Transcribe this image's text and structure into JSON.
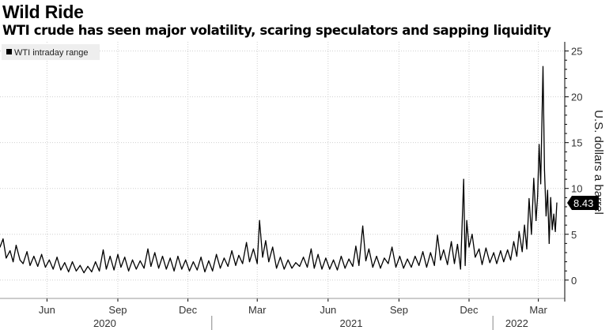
{
  "title": "Wild Ride",
  "subtitle": "WTI crude has seen major volatility, scaring speculators and sapping liquidity",
  "colors": {
    "line": "#000000",
    "grid": "#cfcfcf",
    "legend_bg": "#eeeeee",
    "last_bg": "#000000"
  },
  "chart_data": {
    "type": "line",
    "title": "Wild Ride",
    "subtitle": "WTI crude has seen major volatility, scaring speculators and sapping liquidity",
    "ylabel": "U.S. dollars a barrel",
    "xlabel": "",
    "ylim": [
      -2,
      26
    ],
    "yticks": [
      0,
      5,
      10,
      15,
      20,
      25
    ],
    "y_axis_side": "right",
    "grid": true,
    "legend": {
      "placement": "top-left",
      "entries": [
        "WTI intraday range"
      ]
    },
    "last_value_label": "8.43",
    "x_range": [
      "2020-04-01",
      "2022-03-25"
    ],
    "month_ticks": [
      {
        "date": "2020-06-01",
        "label": "Jun"
      },
      {
        "date": "2020-09-01",
        "label": "Sep"
      },
      {
        "date": "2020-12-01",
        "label": "Dec"
      },
      {
        "date": "2021-03-01",
        "label": "Mar"
      },
      {
        "date": "2021-06-01",
        "label": "Jun"
      },
      {
        "date": "2021-09-01",
        "label": "Sep"
      },
      {
        "date": "2021-12-01",
        "label": "Dec"
      },
      {
        "date": "2022-03-01",
        "label": "Mar"
      }
    ],
    "year_ticks": [
      {
        "date": "2020-08-15",
        "label": "2020"
      },
      {
        "date": "2021-07-01",
        "label": "2021"
      },
      {
        "date": "2022-02-01",
        "label": "2022"
      }
    ],
    "series": [
      {
        "name": "WTI intraday range",
        "points": [
          [
            "2020-04-01",
            3.6
          ],
          [
            "2020-04-05",
            4.5
          ],
          [
            "2020-04-09",
            2.4
          ],
          [
            "2020-04-14",
            3.2
          ],
          [
            "2020-04-18",
            2.0
          ],
          [
            "2020-04-22",
            3.8
          ],
          [
            "2020-04-27",
            2.2
          ],
          [
            "2020-05-01",
            1.8
          ],
          [
            "2020-05-06",
            3.1
          ],
          [
            "2020-05-10",
            1.6
          ],
          [
            "2020-05-15",
            2.6
          ],
          [
            "2020-05-20",
            1.5
          ],
          [
            "2020-05-25",
            2.8
          ],
          [
            "2020-05-30",
            1.4
          ],
          [
            "2020-06-04",
            2.2
          ],
          [
            "2020-06-09",
            1.2
          ],
          [
            "2020-06-14",
            2.5
          ],
          [
            "2020-06-19",
            1.1
          ],
          [
            "2020-06-24",
            1.9
          ],
          [
            "2020-06-29",
            0.9
          ],
          [
            "2020-07-04",
            2.0
          ],
          [
            "2020-07-09",
            1.0
          ],
          [
            "2020-07-14",
            1.6
          ],
          [
            "2020-07-19",
            0.8
          ],
          [
            "2020-07-24",
            1.5
          ],
          [
            "2020-07-29",
            0.9
          ],
          [
            "2020-08-03",
            2.0
          ],
          [
            "2020-08-08",
            1.0
          ],
          [
            "2020-08-13",
            3.3
          ],
          [
            "2020-08-17",
            1.2
          ],
          [
            "2020-08-22",
            2.6
          ],
          [
            "2020-08-27",
            1.1
          ],
          [
            "2020-09-01",
            2.8
          ],
          [
            "2020-09-05",
            1.4
          ],
          [
            "2020-09-10",
            2.5
          ],
          [
            "2020-09-15",
            1.0
          ],
          [
            "2020-09-20",
            2.2
          ],
          [
            "2020-09-25",
            1.2
          ],
          [
            "2020-09-30",
            2.1
          ],
          [
            "2020-10-05",
            1.3
          ],
          [
            "2020-10-10",
            3.4
          ],
          [
            "2020-10-14",
            1.5
          ],
          [
            "2020-10-19",
            3.0
          ],
          [
            "2020-10-24",
            1.3
          ],
          [
            "2020-10-29",
            2.6
          ],
          [
            "2020-11-03",
            1.2
          ],
          [
            "2020-11-08",
            2.4
          ],
          [
            "2020-11-13",
            1.0
          ],
          [
            "2020-11-18",
            2.6
          ],
          [
            "2020-11-23",
            1.2
          ],
          [
            "2020-11-28",
            2.2
          ],
          [
            "2020-12-03",
            1.0
          ],
          [
            "2020-12-08",
            2.0
          ],
          [
            "2020-12-13",
            1.1
          ],
          [
            "2020-12-18",
            2.5
          ],
          [
            "2020-12-23",
            0.9
          ],
          [
            "2020-12-28",
            2.1
          ],
          [
            "2021-01-02",
            1.0
          ],
          [
            "2021-01-07",
            2.8
          ],
          [
            "2021-01-12",
            1.3
          ],
          [
            "2021-01-17",
            2.4
          ],
          [
            "2021-01-22",
            1.5
          ],
          [
            "2021-01-27",
            3.2
          ],
          [
            "2021-02-01",
            1.6
          ],
          [
            "2021-02-05",
            2.7
          ],
          [
            "2021-02-10",
            1.8
          ],
          [
            "2021-02-15",
            4.1
          ],
          [
            "2021-02-19",
            2.0
          ],
          [
            "2021-02-24",
            3.4
          ],
          [
            "2021-03-01",
            1.8
          ],
          [
            "2021-03-04",
            6.5
          ],
          [
            "2021-03-08",
            2.5
          ],
          [
            "2021-03-12",
            4.3
          ],
          [
            "2021-03-16",
            2.0
          ],
          [
            "2021-03-21",
            3.6
          ],
          [
            "2021-03-26",
            1.3
          ],
          [
            "2021-03-31",
            2.5
          ],
          [
            "2021-04-05",
            1.2
          ],
          [
            "2021-04-10",
            2.2
          ],
          [
            "2021-04-15",
            1.3
          ],
          [
            "2021-04-20",
            1.9
          ],
          [
            "2021-04-25",
            1.5
          ],
          [
            "2021-04-30",
            2.5
          ],
          [
            "2021-05-05",
            1.4
          ],
          [
            "2021-05-10",
            3.4
          ],
          [
            "2021-05-14",
            1.3
          ],
          [
            "2021-05-19",
            2.8
          ],
          [
            "2021-05-24",
            1.2
          ],
          [
            "2021-05-29",
            2.4
          ],
          [
            "2021-06-03",
            1.2
          ],
          [
            "2021-06-08",
            2.2
          ],
          [
            "2021-06-13",
            1.1
          ],
          [
            "2021-06-18",
            2.6
          ],
          [
            "2021-06-23",
            1.3
          ],
          [
            "2021-06-28",
            2.3
          ],
          [
            "2021-07-03",
            1.5
          ],
          [
            "2021-07-07",
            3.7
          ],
          [
            "2021-07-11",
            1.6
          ],
          [
            "2021-07-16",
            5.9
          ],
          [
            "2021-07-20",
            2.1
          ],
          [
            "2021-07-24",
            3.4
          ],
          [
            "2021-07-29",
            1.4
          ],
          [
            "2021-08-03",
            2.6
          ],
          [
            "2021-08-08",
            1.3
          ],
          [
            "2021-08-13",
            2.4
          ],
          [
            "2021-08-18",
            1.8
          ],
          [
            "2021-08-23",
            3.6
          ],
          [
            "2021-08-28",
            1.4
          ],
          [
            "2021-09-02",
            2.6
          ],
          [
            "2021-09-07",
            1.3
          ],
          [
            "2021-09-12",
            2.3
          ],
          [
            "2021-09-17",
            1.4
          ],
          [
            "2021-09-22",
            2.6
          ],
          [
            "2021-09-27",
            1.6
          ],
          [
            "2021-10-02",
            3.1
          ],
          [
            "2021-10-07",
            1.4
          ],
          [
            "2021-10-12",
            3.0
          ],
          [
            "2021-10-17",
            1.6
          ],
          [
            "2021-10-21",
            4.9
          ],
          [
            "2021-10-25",
            2.2
          ],
          [
            "2021-10-29",
            3.3
          ],
          [
            "2021-11-03",
            1.7
          ],
          [
            "2021-11-08",
            4.2
          ],
          [
            "2021-11-12",
            1.8
          ],
          [
            "2021-11-16",
            3.9
          ],
          [
            "2021-11-20",
            1.2
          ],
          [
            "2021-11-24",
            11.0
          ],
          [
            "2021-11-26",
            1.6
          ],
          [
            "2021-11-28",
            6.5
          ],
          [
            "2021-12-01",
            3.6
          ],
          [
            "2021-12-05",
            5.0
          ],
          [
            "2021-12-09",
            2.5
          ],
          [
            "2021-12-14",
            3.4
          ],
          [
            "2021-12-18",
            1.7
          ],
          [
            "2021-12-23",
            3.5
          ],
          [
            "2021-12-28",
            1.9
          ],
          [
            "2022-01-02",
            3.0
          ],
          [
            "2022-01-06",
            1.8
          ],
          [
            "2022-01-11",
            3.2
          ],
          [
            "2022-01-15",
            2.0
          ],
          [
            "2022-01-20",
            3.3
          ],
          [
            "2022-01-24",
            2.2
          ],
          [
            "2022-01-28",
            4.2
          ],
          [
            "2022-02-01",
            2.6
          ],
          [
            "2022-02-04",
            5.3
          ],
          [
            "2022-02-08",
            3.1
          ],
          [
            "2022-02-11",
            6.0
          ],
          [
            "2022-02-14",
            3.4
          ],
          [
            "2022-02-17",
            8.9
          ],
          [
            "2022-02-20",
            5.0
          ],
          [
            "2022-02-23",
            11.1
          ],
          [
            "2022-02-26",
            6.5
          ],
          [
            "2022-02-28",
            9.2
          ],
          [
            "2022-03-02",
            14.8
          ],
          [
            "2022-03-04",
            10.5
          ],
          [
            "2022-03-07",
            23.3
          ],
          [
            "2022-03-09",
            12.0
          ],
          [
            "2022-03-11",
            7.0
          ],
          [
            "2022-03-13",
            9.8
          ],
          [
            "2022-03-15",
            4.0
          ],
          [
            "2022-03-17",
            9.0
          ],
          [
            "2022-03-19",
            5.5
          ],
          [
            "2022-03-21",
            7.2
          ],
          [
            "2022-03-23",
            5.3
          ],
          [
            "2022-03-25",
            8.43
          ]
        ]
      }
    ]
  }
}
